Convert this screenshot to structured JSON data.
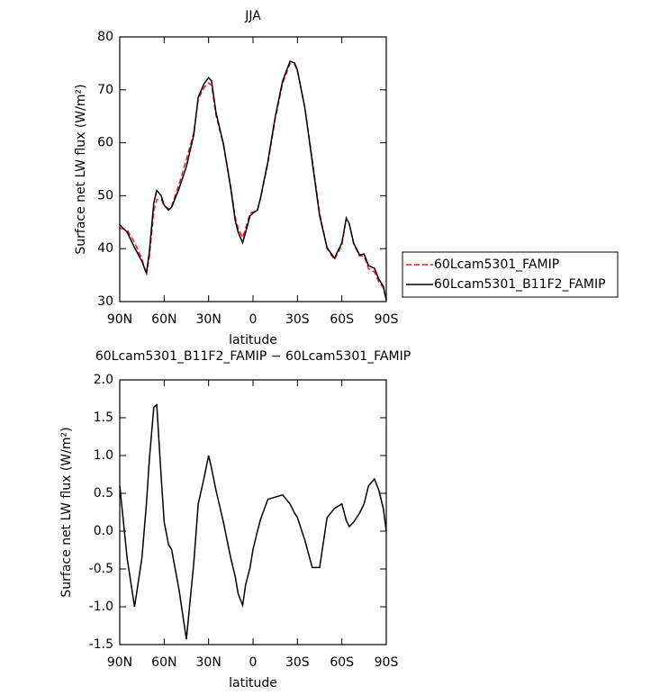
{
  "chart_data": [
    {
      "type": "line",
      "title": "JJA",
      "x_label": "latitude",
      "y_label": "Surface net LW flux (W/m²)",
      "x": [
        90,
        85,
        80,
        75,
        72,
        70,
        67,
        65,
        62,
        60,
        57,
        55,
        50,
        45,
        40,
        37,
        33,
        30,
        28,
        25,
        20,
        15,
        12,
        10,
        7,
        5,
        2,
        0,
        -3,
        -5,
        -10,
        -15,
        -20,
        -25,
        -28,
        -30,
        -35,
        -40,
        -45,
        -50,
        -55,
        -60,
        -63,
        -65,
        -68,
        -72,
        -75,
        -78,
        -82,
        -85,
        -88,
        -90
      ],
      "series": [
        {
          "name": "60Lcam5301_FAMIP",
          "color": "#e8202a",
          "dash": "dashed",
          "values": [
            43.9,
            43.5,
            41.2,
            38.0,
            35.0,
            38.5,
            47.1,
            49.3,
            49.3,
            48.1,
            47.5,
            48.0,
            52.1,
            56.9,
            61.9,
            68.2,
            70.5,
            71.3,
            70.9,
            65.2,
            59.7,
            51.7,
            45.9,
            43.9,
            42.1,
            43.8,
            46.7,
            46.9,
            47.3,
            49.4,
            56.0,
            64.5,
            71.2,
            75.0,
            74.9,
            73.5,
            66.7,
            56.9,
            46.7,
            40.0,
            37.9,
            40.7,
            45.7,
            44.6,
            40.9,
            38.6,
            38.6,
            36.2,
            35.6,
            33.7,
            32.6,
            30.3
          ]
        },
        {
          "name": "60Lcam5301_B11F2_FAMIP",
          "color": "#000000",
          "dash": "solid",
          "values": [
            44.5,
            43.1,
            40.2,
            37.6,
            35.4,
            39.4,
            48.7,
            51.0,
            50.0,
            48.2,
            47.3,
            47.8,
            51.3,
            55.5,
            61.5,
            68.6,
            71.2,
            72.3,
            71.7,
            65.7,
            59.8,
            51.3,
            45.3,
            43.1,
            41.1,
            43.1,
            46.2,
            46.7,
            47.3,
            49.5,
            56.4,
            64.9,
            71.7,
            75.4,
            75.1,
            73.7,
            66.6,
            56.4,
            46.2,
            40.2,
            38.2,
            41.1,
            45.8,
            44.7,
            41.0,
            38.8,
            39.0,
            36.8,
            36.3,
            34.2,
            32.9,
            30.3
          ]
        }
      ],
      "xlim": [
        90,
        -90
      ],
      "xticks": [
        {
          "value": 90,
          "label": "90N"
        },
        {
          "value": 60,
          "label": "60N"
        },
        {
          "value": 30,
          "label": "30N"
        },
        0,
        {
          "value": -30,
          "label": "30S"
        },
        {
          "value": -60,
          "label": "60S"
        },
        {
          "value": -90,
          "label": "90S"
        }
      ],
      "ylim": [
        30,
        80
      ],
      "yticks": [
        30,
        40,
        50,
        60,
        70,
        80
      ],
      "legend": "outside-right"
    },
    {
      "type": "line",
      "title": "60Lcam5301_B11F2_FAMIP − 60Lcam5301_FAMIP",
      "x_label": "latitude",
      "y_label": "Surface net LW flux (W/m²)",
      "x": [
        90,
        85,
        80,
        75,
        72,
        70,
        67,
        65,
        62,
        60,
        57,
        55,
        50,
        45,
        40,
        37,
        33,
        30,
        28,
        25,
        20,
        15,
        12,
        10,
        7,
        5,
        2,
        0,
        -3,
        -5,
        -10,
        -15,
        -20,
        -25,
        -28,
        -30,
        -35,
        -40,
        -45,
        -50,
        -55,
        -60,
        -63,
        -65,
        -68,
        -72,
        -75,
        -78,
        -82,
        -85,
        -88,
        -90
      ],
      "series": [
        {
          "color": "#000000",
          "dash": "solid",
          "values": [
            0.6,
            -0.36,
            -1.0,
            -0.35,
            0.36,
            0.95,
            1.64,
            1.67,
            0.71,
            0.12,
            -0.18,
            -0.24,
            -0.77,
            -1.43,
            -0.42,
            0.36,
            0.71,
            1.0,
            0.83,
            0.54,
            0.12,
            -0.36,
            -0.6,
            -0.83,
            -0.98,
            -0.71,
            -0.48,
            -0.24,
            0,
            0.15,
            0.42,
            0.45,
            0.48,
            0.36,
            0.24,
            0.18,
            -0.12,
            -0.48,
            -0.48,
            0.18,
            0.3,
            0.36,
            0.14,
            0.06,
            0.12,
            0.24,
            0.36,
            0.6,
            0.69,
            0.54,
            0.3,
            0.0
          ]
        }
      ],
      "xlim": [
        90,
        -90
      ],
      "xticks": [
        {
          "value": 90,
          "label": "90N"
        },
        {
          "value": 60,
          "label": "60N"
        },
        {
          "value": 30,
          "label": "30N"
        },
        0,
        {
          "value": -30,
          "label": "30S"
        },
        {
          "value": -60,
          "label": "60S"
        },
        {
          "value": -90,
          "label": "90S"
        }
      ],
      "ylim": [
        -1.5,
        2.0
      ],
      "yticks": [
        -1.5,
        {
          "value": -1.0,
          "label": "-1.0"
        },
        {
          "value": -0.5,
          "label": "-0.5"
        },
        {
          "value": 0,
          "label": "0.0"
        },
        0.5,
        {
          "value": 1.0,
          "label": "1.0"
        },
        1.5,
        {
          "value": 2.0,
          "label": "2.0"
        }
      ]
    }
  ]
}
